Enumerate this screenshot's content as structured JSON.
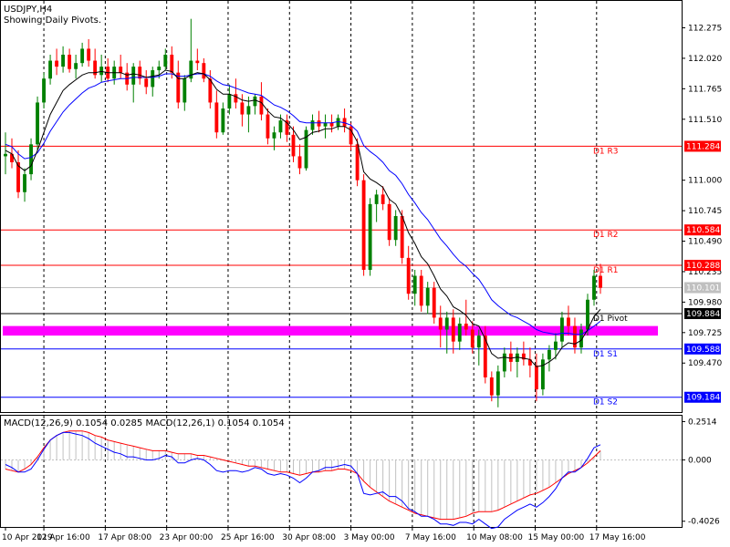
{
  "chart_data": {
    "type": "candlestick",
    "symbol": "USDJPY,H4",
    "subtitle": "Showing Daily Pivots.",
    "x_labels": [
      "10 Apr 2019",
      "12 Apr 16:00",
      "17 Apr 08:00",
      "23 Apr 00:00",
      "25 Apr 16:00",
      "30 Apr 08:00",
      "3 May 00:00",
      "7 May 16:00",
      "10 May 08:00",
      "15 May 00:00",
      "17 May 16:00"
    ],
    "price_ticks": [
      "112.275",
      "112.020",
      "111.765",
      "111.510",
      "111.000",
      "110.745",
      "110.490",
      "110.235",
      "109.980",
      "109.725",
      "109.470"
    ],
    "price_range": [
      109.06,
      112.5
    ],
    "current_price": "110.101",
    "pivots": [
      {
        "name": "D1 R3",
        "value": "111.284",
        "color": "#ff0000"
      },
      {
        "name": "D1 R2",
        "value": "110.584",
        "color": "#ff0000"
      },
      {
        "name": "D1 R1",
        "value": "110.288",
        "color": "#ff0000"
      },
      {
        "name": "D1 Pivot",
        "value": "109.884",
        "color": "#000000"
      },
      {
        "name": "D1 S1",
        "value": "109.588",
        "color": "#0000ff"
      },
      {
        "name": "D1 S2",
        "value": "109.184",
        "color": "#0000ff"
      }
    ],
    "zone": {
      "from": 109.7,
      "to": 109.78,
      "color": "#ff00ff"
    },
    "candles": [
      [
        111.2,
        111.4,
        111.05,
        111.22
      ],
      [
        111.22,
        111.35,
        111.1,
        111.15
      ],
      [
        111.15,
        111.25,
        110.85,
        110.9
      ],
      [
        110.9,
        111.1,
        110.82,
        111.05
      ],
      [
        111.05,
        111.35,
        111.0,
        111.3
      ],
      [
        111.3,
        111.7,
        111.25,
        111.65
      ],
      [
        111.65,
        111.9,
        111.6,
        111.85
      ],
      [
        111.85,
        112.05,
        111.8,
        112.0
      ],
      [
        112.0,
        112.1,
        111.88,
        111.95
      ],
      [
        111.95,
        112.12,
        111.9,
        112.05
      ],
      [
        112.05,
        112.1,
        111.9,
        111.93
      ],
      [
        111.93,
        112.05,
        111.85,
        111.98
      ],
      [
        111.98,
        112.15,
        111.95,
        112.1
      ],
      [
        112.1,
        112.18,
        111.95,
        112.0
      ],
      [
        112.0,
        112.1,
        111.85,
        111.88
      ],
      [
        111.88,
        112.05,
        111.82,
        111.95
      ],
      [
        111.95,
        112.02,
        111.82,
        111.85
      ],
      [
        111.85,
        112.0,
        111.8,
        111.95
      ],
      [
        111.95,
        112.05,
        111.85,
        111.9
      ],
      [
        111.9,
        111.98,
        111.75,
        111.8
      ],
      [
        111.8,
        111.98,
        111.65,
        111.95
      ],
      [
        111.95,
        112.0,
        111.8,
        111.85
      ],
      [
        111.85,
        111.92,
        111.72,
        111.78
      ],
      [
        111.78,
        111.95,
        111.7,
        111.92
      ],
      [
        111.92,
        112.0,
        111.85,
        111.95
      ],
      [
        111.95,
        112.1,
        111.92,
        112.05
      ],
      [
        112.05,
        112.12,
        111.85,
        111.9
      ],
      [
        111.9,
        112.0,
        111.6,
        111.65
      ],
      [
        111.65,
        111.88,
        111.58,
        111.85
      ],
      [
        111.85,
        112.35,
        111.82,
        112.0
      ],
      [
        112.0,
        112.1,
        111.92,
        111.98
      ],
      [
        111.98,
        112.02,
        111.82,
        111.85
      ],
      [
        111.85,
        111.92,
        111.6,
        111.65
      ],
      [
        111.65,
        111.75,
        111.35,
        111.4
      ],
      [
        111.4,
        111.65,
        111.38,
        111.6
      ],
      [
        111.6,
        111.8,
        111.55,
        111.72
      ],
      [
        111.72,
        111.85,
        111.6,
        111.65
      ],
      [
        111.65,
        111.72,
        111.45,
        111.55
      ],
      [
        111.55,
        111.7,
        111.4,
        111.62
      ],
      [
        111.62,
        111.72,
        111.55,
        111.7
      ],
      [
        111.7,
        111.82,
        111.5,
        111.55
      ],
      [
        111.55,
        111.6,
        111.3,
        111.35
      ],
      [
        111.35,
        111.45,
        111.25,
        111.4
      ],
      [
        111.4,
        111.55,
        111.35,
        111.5
      ],
      [
        111.5,
        111.55,
        111.32,
        111.38
      ],
      [
        111.38,
        111.45,
        111.15,
        111.2
      ],
      [
        111.2,
        111.3,
        111.05,
        111.1
      ],
      [
        111.1,
        111.45,
        111.08,
        111.42
      ],
      [
        111.42,
        111.55,
        111.38,
        111.5
      ],
      [
        111.5,
        111.58,
        111.4,
        111.45
      ],
      [
        111.45,
        111.55,
        111.35,
        111.48
      ],
      [
        111.48,
        111.55,
        111.4,
        111.45
      ],
      [
        111.45,
        111.55,
        111.42,
        111.52
      ],
      [
        111.52,
        111.6,
        111.4,
        111.45
      ],
      [
        111.45,
        111.48,
        111.25,
        111.3
      ],
      [
        111.3,
        111.35,
        110.95,
        111.0
      ],
      [
        111.0,
        111.05,
        110.2,
        110.25
      ],
      [
        110.25,
        110.85,
        110.2,
        110.8
      ],
      [
        110.8,
        110.92,
        110.65,
        110.88
      ],
      [
        110.88,
        110.95,
        110.75,
        110.8
      ],
      [
        110.8,
        110.85,
        110.45,
        110.5
      ],
      [
        110.5,
        110.75,
        110.45,
        110.7
      ],
      [
        110.7,
        110.75,
        110.3,
        110.35
      ],
      [
        110.35,
        110.45,
        110.0,
        110.05
      ],
      [
        110.05,
        110.25,
        109.95,
        110.2
      ],
      [
        110.2,
        110.25,
        109.9,
        109.95
      ],
      [
        109.95,
        110.15,
        109.88,
        110.1
      ],
      [
        110.1,
        110.15,
        109.8,
        109.85
      ],
      [
        109.85,
        109.95,
        109.6,
        109.75
      ],
      [
        109.75,
        109.9,
        109.55,
        109.85
      ],
      [
        109.85,
        109.92,
        109.55,
        109.65
      ],
      [
        109.65,
        109.85,
        109.58,
        109.8
      ],
      [
        109.8,
        110.0,
        109.7,
        109.75
      ],
      [
        109.75,
        109.82,
        109.55,
        109.6
      ],
      [
        109.6,
        109.75,
        109.45,
        109.7
      ],
      [
        109.7,
        109.78,
        109.3,
        109.35
      ],
      [
        109.35,
        109.4,
        109.15,
        109.2
      ],
      [
        109.2,
        109.45,
        109.1,
        109.4
      ],
      [
        109.4,
        109.6,
        109.35,
        109.55
      ],
      [
        109.55,
        109.65,
        109.4,
        109.48
      ],
      [
        109.48,
        109.6,
        109.35,
        109.55
      ],
      [
        109.55,
        109.65,
        109.45,
        109.5
      ],
      [
        109.5,
        109.6,
        109.35,
        109.45
      ],
      [
        109.45,
        109.55,
        109.15,
        109.25
      ],
      [
        109.25,
        109.55,
        109.2,
        109.5
      ],
      [
        109.5,
        109.62,
        109.4,
        109.58
      ],
      [
        109.58,
        109.72,
        109.5,
        109.65
      ],
      [
        109.65,
        109.9,
        109.6,
        109.85
      ],
      [
        109.85,
        109.95,
        109.7,
        109.78
      ],
      [
        109.78,
        109.85,
        109.55,
        109.6
      ],
      [
        109.6,
        109.8,
        109.55,
        109.75
      ],
      [
        109.75,
        110.05,
        109.7,
        110.0
      ],
      [
        110.0,
        110.25,
        109.95,
        110.2
      ],
      [
        110.2,
        110.3,
        110.05,
        110.1
      ]
    ],
    "ema_fast": [
      111.25,
      111.22,
      111.12,
      111.08,
      111.12,
      111.25,
      111.4,
      111.55,
      111.65,
      111.75,
      111.8,
      111.84,
      111.88,
      111.9,
      111.9,
      111.91,
      111.9,
      111.9,
      111.9,
      111.88,
      111.89,
      111.88,
      111.86,
      111.87,
      111.88,
      111.92,
      111.91,
      111.85,
      111.85,
      111.88,
      111.9,
      111.89,
      111.84,
      111.76,
      111.72,
      111.72,
      111.7,
      111.67,
      111.66,
      111.67,
      111.65,
      111.58,
      111.53,
      111.52,
      111.48,
      111.42,
      111.34,
      111.36,
      111.4,
      111.41,
      111.43,
      111.43,
      111.45,
      111.45,
      111.42,
      111.32,
      111.07,
      111.01,
      110.98,
      110.94,
      110.84,
      110.8,
      110.7,
      110.56,
      110.47,
      110.36,
      110.3,
      110.2,
      110.09,
      110.03,
      109.94,
      109.91,
      109.87,
      109.8,
      109.78,
      109.67,
      109.55,
      109.51,
      109.52,
      109.51,
      109.52,
      109.51,
      109.5,
      109.44,
      109.45,
      109.48,
      109.52,
      109.6,
      109.64,
      109.63,
      109.66,
      109.75,
      109.86,
      109.92
    ],
    "ema_slow": [
      111.3,
      111.28,
      111.22,
      111.18,
      111.19,
      111.23,
      111.31,
      111.41,
      111.49,
      111.57,
      111.63,
      111.68,
      111.73,
      111.77,
      111.79,
      111.82,
      111.83,
      111.84,
      111.85,
      111.85,
      111.86,
      111.86,
      111.86,
      111.86,
      111.87,
      111.89,
      111.89,
      111.87,
      111.87,
      111.88,
      111.89,
      111.89,
      111.87,
      111.83,
      111.8,
      111.79,
      111.77,
      111.75,
      111.73,
      111.72,
      111.71,
      111.67,
      111.63,
      111.61,
      111.58,
      111.54,
      111.49,
      111.48,
      111.48,
      111.48,
      111.48,
      111.48,
      111.49,
      111.48,
      111.46,
      111.41,
      111.29,
      111.24,
      111.2,
      111.15,
      111.08,
      111.04,
      110.97,
      110.88,
      110.81,
      110.73,
      110.67,
      110.59,
      110.51,
      110.45,
      110.38,
      110.32,
      110.28,
      110.22,
      110.17,
      110.09,
      110.0,
      109.95,
      109.91,
      109.87,
      109.85,
      109.82,
      109.79,
      109.75,
      109.73,
      109.72,
      109.71,
      109.72,
      109.72,
      109.71,
      109.71,
      109.74,
      109.78,
      109.82
    ],
    "macd": {
      "label": "MACD(12,26,9) 0.1054 0.0285 MACD(12,26,1) 0.1054 0.1054",
      "ticks": [
        "0.2514",
        "0.000",
        "-0.4026"
      ],
      "range": [
        -0.44,
        0.29
      ],
      "hist": [
        -0.06,
        -0.07,
        -0.08,
        -0.06,
        -0.03,
        0.02,
        0.08,
        0.13,
        0.16,
        0.18,
        0.19,
        0.19,
        0.19,
        0.18,
        0.16,
        0.15,
        0.13,
        0.12,
        0.11,
        0.1,
        0.09,
        0.08,
        0.07,
        0.06,
        0.06,
        0.06,
        0.05,
        0.04,
        0.04,
        0.04,
        0.03,
        0.03,
        0.02,
        0.01,
        0.0,
        -0.01,
        -0.02,
        -0.03,
        -0.04,
        -0.04,
        -0.05,
        -0.06,
        -0.07,
        -0.08,
        -0.08,
        -0.09,
        -0.1,
        -0.09,
        -0.08,
        -0.08,
        -0.07,
        -0.07,
        -0.06,
        -0.06,
        -0.07,
        -0.09,
        -0.14,
        -0.18,
        -0.21,
        -0.24,
        -0.27,
        -0.29,
        -0.31,
        -0.33,
        -0.35,
        -0.36,
        -0.37,
        -0.38,
        -0.39,
        -0.39,
        -0.39,
        -0.38,
        -0.37,
        -0.35,
        -0.34,
        -0.34,
        -0.34,
        -0.33,
        -0.31,
        -0.29,
        -0.27,
        -0.25,
        -0.23,
        -0.22,
        -0.2,
        -0.18,
        -0.15,
        -0.12,
        -0.09,
        -0.07,
        -0.05,
        -0.02,
        0.02,
        0.06
      ],
      "line": [
        -0.03,
        -0.05,
        -0.08,
        -0.08,
        -0.06,
        0.0,
        0.07,
        0.13,
        0.16,
        0.18,
        0.18,
        0.17,
        0.16,
        0.14,
        0.11,
        0.09,
        0.07,
        0.05,
        0.04,
        0.02,
        0.02,
        0.01,
        0.0,
        0.0,
        0.01,
        0.03,
        0.02,
        -0.02,
        -0.02,
        0.0,
        0.01,
        0.0,
        -0.03,
        -0.07,
        -0.08,
        -0.07,
        -0.07,
        -0.08,
        -0.07,
        -0.05,
        -0.06,
        -0.09,
        -0.1,
        -0.09,
        -0.1,
        -0.12,
        -0.15,
        -0.12,
        -0.08,
        -0.07,
        -0.05,
        -0.05,
        -0.04,
        -0.03,
        -0.04,
        -0.09,
        -0.22,
        -0.23,
        -0.22,
        -0.21,
        -0.24,
        -0.24,
        -0.27,
        -0.32,
        -0.34,
        -0.37,
        -0.37,
        -0.39,
        -0.42,
        -0.42,
        -0.43,
        -0.41,
        -0.41,
        -0.42,
        -0.39,
        -0.42,
        -0.45,
        -0.44,
        -0.39,
        -0.36,
        -0.33,
        -0.31,
        -0.29,
        -0.31,
        -0.28,
        -0.24,
        -0.19,
        -0.12,
        -0.08,
        -0.08,
        -0.05,
        0.01,
        0.08,
        0.1
      ]
    }
  }
}
